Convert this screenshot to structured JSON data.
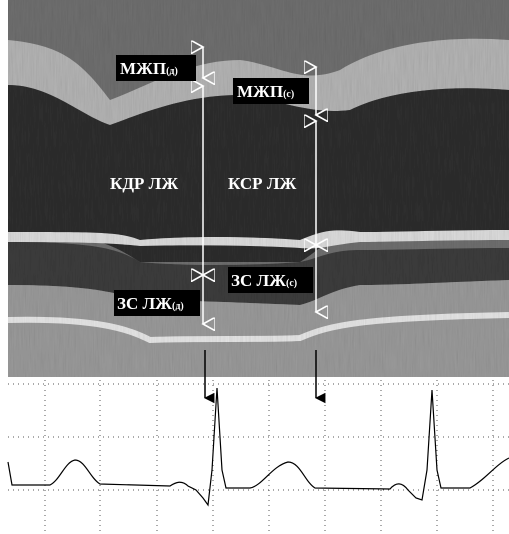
{
  "labels": {
    "ivs_d": {
      "main": "МЖП",
      "sub": "(д)"
    },
    "ivs_s": {
      "main": "МЖП",
      "sub": "(с)"
    },
    "lvedd": "КДР ЛЖ",
    "lvesd": "КСР ЛЖ",
    "pw_s": {
      "main": "ЗС ЛЖ",
      "sub": "(с)"
    },
    "pw_d": {
      "main": "ЗС ЛЖ",
      "sub": "(д)"
    }
  }
}
